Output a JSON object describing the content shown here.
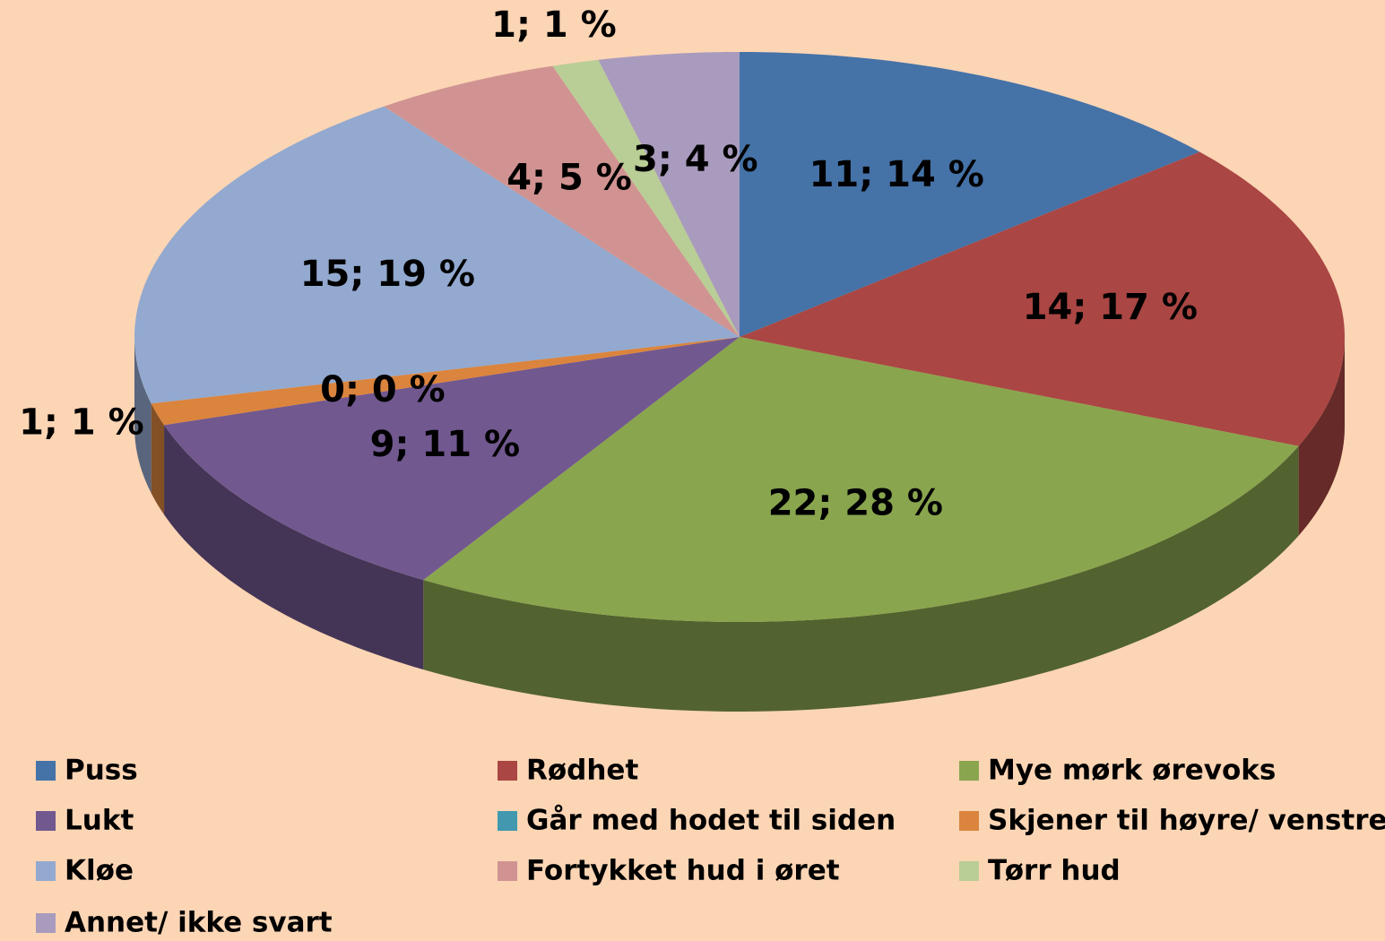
{
  "chart_data": {
    "type": "pie3d",
    "categories": [
      "Puss",
      "Rødhet",
      "Mye mørk ørevoks",
      "Lukt",
      "Går med hodet til siden",
      "Skjener til høyre/ venstre",
      "Kløe",
      "Fortykket hud i øret",
      "Tørr hud",
      "Annet/ ikke svart"
    ],
    "values": [
      11,
      14,
      22,
      9,
      0,
      1,
      15,
      4,
      1,
      3
    ],
    "value_labels": [
      "11; 14 %",
      "14; 17 %",
      "22; 28 %",
      "9; 11 %",
      "0; 0 %",
      "1; 1 %",
      "15; 19 %",
      "4; 5 %",
      "1; 1 %",
      "3; 4 %"
    ],
    "colors": [
      "#4572a7",
      "#aa4643",
      "#89a54e",
      "#71588f",
      "#4198af",
      "#db843d",
      "#93a9cf",
      "#d19392",
      "#b9cd96",
      "#a99bbd"
    ],
    "legend": "bottom"
  }
}
